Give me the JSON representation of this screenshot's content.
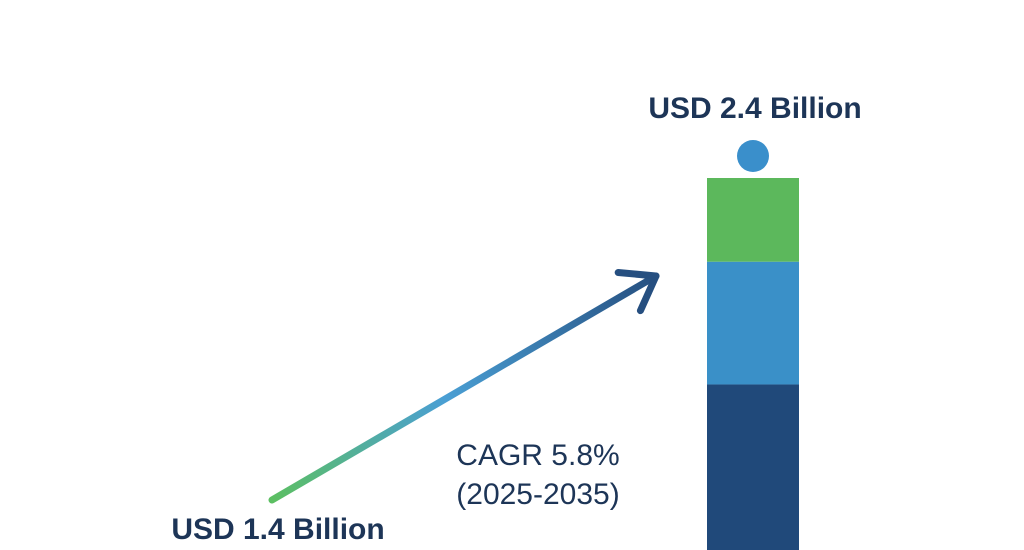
{
  "chart_data": {
    "type": "bar",
    "categories": [
      "2025",
      "2035"
    ],
    "values": [
      1.4,
      2.4
    ],
    "unit": "USD Billion",
    "labels": {
      "start_value": "USD 1.4 Billion",
      "end_value": "USD 2.4 Billion",
      "cagr": "CAGR 5.8%",
      "period": "(2025-2035)"
    },
    "end_bar_segments": [
      {
        "color": "#20497a"
      },
      {
        "color": "#3a90c8"
      },
      {
        "color": "#5cb85c"
      }
    ],
    "marker_color": "#3a8fcb",
    "arrow": {
      "start_color": "#5cbf62",
      "mid_color": "#4a9fd4",
      "end_color": "#264f80"
    },
    "text_color": "#1d3557"
  }
}
